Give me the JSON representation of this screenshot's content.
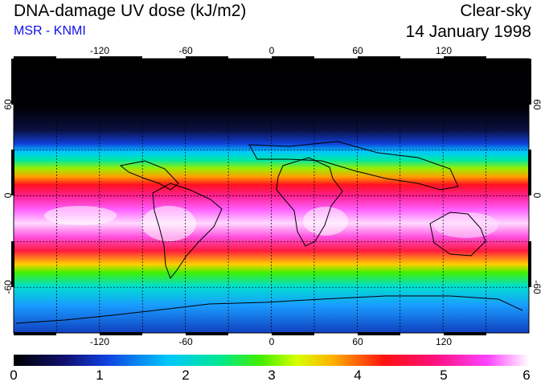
{
  "header": {
    "title": "DNA-damage UV dose (kJ/m2)",
    "subtitle": "MSR - KNMI",
    "condition": "Clear-sky",
    "date": "14 January 1998"
  },
  "map": {
    "lon_ticks_top": [
      "-120",
      "-60",
      "0",
      "60",
      "120"
    ],
    "lon_ticks_bottom": [
      "-120",
      "-60",
      "0",
      "60",
      "120"
    ],
    "lat_ticks_left": [
      "60",
      "0",
      "-60"
    ],
    "lat_ticks_right": [
      "60",
      "0",
      "-60"
    ],
    "lon_range": [
      -180,
      180
    ],
    "lat_range": [
      -90,
      90
    ],
    "grid_lon": [
      -150,
      -120,
      -90,
      -60,
      -30,
      0,
      30,
      60,
      90,
      120,
      150
    ],
    "grid_lat": [
      -60,
      -30,
      0,
      30,
      60
    ]
  },
  "colorbar": {
    "labels": [
      "0",
      "1",
      "2",
      "3",
      "4",
      "5",
      "6"
    ],
    "min": 0,
    "max": 6,
    "colors": [
      "#000000",
      "#101070",
      "#1040e0",
      "#00c8ff",
      "#00e890",
      "#44ee00",
      "#d8ff00",
      "#ffb000",
      "#ff1010",
      "#ff1080",
      "#ff44ff",
      "#ffffff"
    ]
  }
}
